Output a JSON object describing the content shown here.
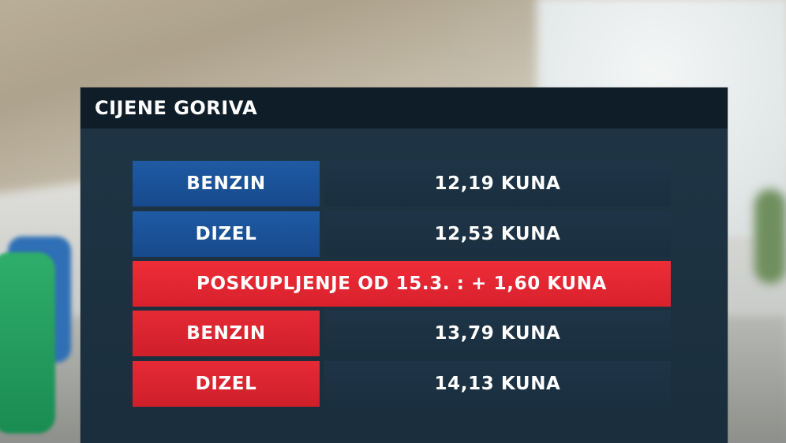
{
  "panel": {
    "title": "CIJENE GORIVA"
  },
  "rows": [
    {
      "label": "BENZIN",
      "value": "12,19 KUNA",
      "label_color": "#1e5aa3"
    },
    {
      "label": "DIZEL",
      "value": "12,53 KUNA",
      "label_color": "#1e5aa3"
    }
  ],
  "banner": {
    "text": "POSKUPLJENJE OD 15.3. : + 1,60 KUNA",
    "color": "#e52a35"
  },
  "rows_new": [
    {
      "label": "BENZIN",
      "value": "13,79 KUNA",
      "label_color": "#e52a35"
    },
    {
      "label": "DIZEL",
      "value": "14,13 KUNA",
      "label_color": "#e52a35"
    }
  ]
}
